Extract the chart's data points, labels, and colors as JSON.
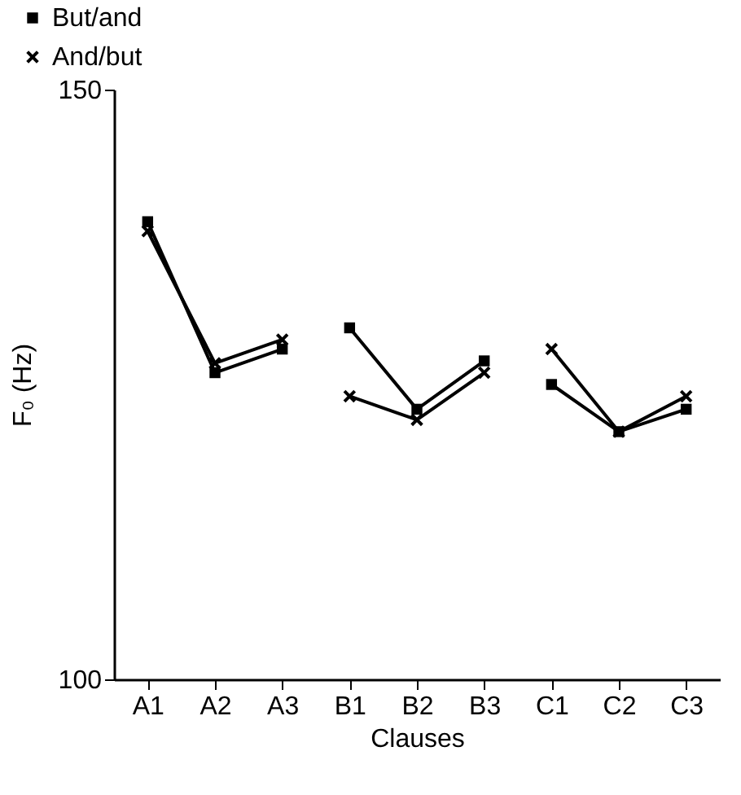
{
  "chart_data": {
    "type": "line",
    "xlabel": "Clauses",
    "ylabel": "F₀ (Hz)",
    "categories": [
      "A1",
      "A2",
      "A3",
      "B1",
      "B2",
      "B3",
      "C1",
      "C2",
      "C3"
    ],
    "ylim": [
      100,
      150
    ],
    "yticks": [
      100,
      150
    ],
    "grid": false,
    "legend": "top left",
    "series": [
      {
        "name": "But/and",
        "color": "#000000",
        "marker": "square",
        "values": [
          138.8,
          126,
          128,
          null,
          null,
          null,
          null,
          null,
          null
        ]
      },
      {
        "color": "#000000",
        "marker": "square",
        "values": [
          null,
          null,
          null,
          129.8,
          122.9,
          127,
          null,
          null,
          null
        ]
      },
      {
        "color": "#000000",
        "marker": "square",
        "values": [
          null,
          null,
          null,
          null,
          null,
          null,
          125,
          121,
          122.9
        ]
      },
      {
        "name": "And/but",
        "color": "#000000",
        "marker": "cross",
        "values": [
          138,
          126.8,
          128.8,
          null,
          null,
          null,
          null,
          null,
          null
        ]
      },
      {
        "color": "#000000",
        "marker": "cross",
        "values": [
          null,
          null,
          null,
          124,
          122,
          126,
          null,
          null,
          null
        ]
      },
      {
        "color": "#000000",
        "marker": "cross",
        "values": [
          null,
          null,
          null,
          null,
          null,
          null,
          128,
          121,
          124
        ]
      }
    ]
  }
}
